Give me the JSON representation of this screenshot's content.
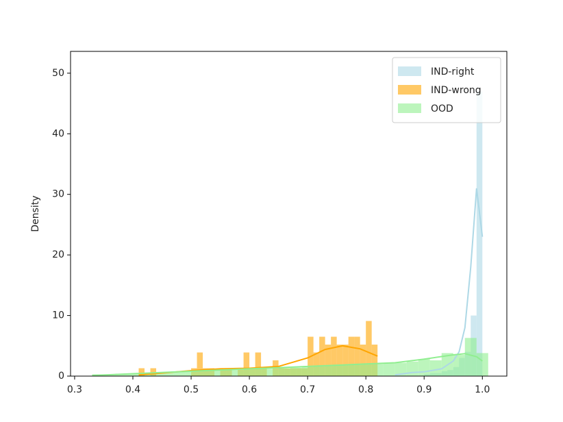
{
  "chart_data": {
    "type": "histogram",
    "ylabel": "Density",
    "xlim": [
      0.293,
      1.042
    ],
    "ylim": [
      0,
      53.6
    ],
    "xticks": [
      0.3,
      0.4,
      0.5,
      0.6,
      0.7,
      0.8,
      0.9,
      {
        "value": 1,
        "label": "1.0"
      }
    ],
    "yticks": [
      0,
      10,
      20,
      30,
      40,
      50
    ],
    "legend": "upper right",
    "series": [
      {
        "name": "IND-right",
        "color": "#add8e6",
        "bins": [
          0.9,
          0.91,
          0.92,
          0.93,
          0.94,
          0.95,
          0.96,
          0.97,
          0.98,
          0.99,
          1.0
        ],
        "counts": [
          0.3,
          0.5,
          0.5,
          0.8,
          1.0,
          1.5,
          3,
          4,
          10,
          47
        ],
        "kde_x": [
          0.85,
          0.88,
          0.9,
          0.93,
          0.95,
          0.96,
          0.97,
          0.98,
          0.99,
          1.0
        ],
        "kde_y": [
          0.2,
          0.6,
          0.7,
          1.2,
          2.5,
          4,
          8,
          18,
          31,
          23
        ]
      },
      {
        "name": "IND-wrong",
        "color": "#ffa500",
        "bins": [
          0.4,
          0.41,
          0.42,
          0.43,
          0.44,
          0.45,
          0.46,
          0.47,
          0.48,
          0.49,
          0.5,
          0.51,
          0.52,
          0.53,
          0.54,
          0.55,
          0.56,
          0.57,
          0.58,
          0.59,
          0.6,
          0.61,
          0.62,
          0.63,
          0.64,
          0.65,
          0.66,
          0.67,
          0.68,
          0.69,
          0.7,
          0.71,
          0.72,
          0.73,
          0.74,
          0.75,
          0.76,
          0.77,
          0.78,
          0.79,
          0.8,
          0.81,
          0.82
        ],
        "counts": [
          0,
          1.3,
          0,
          1.3,
          0,
          0,
          0,
          0,
          0,
          0,
          1.3,
          3.9,
          1.3,
          1.3,
          0,
          1.3,
          1.3,
          0,
          1.3,
          3.9,
          1.3,
          3.9,
          1.3,
          0,
          2.6,
          1.3,
          1.3,
          1.3,
          1.3,
          1.3,
          6.5,
          3.9,
          6.5,
          5.2,
          6.5,
          5.2,
          5.2,
          6.5,
          6.5,
          5.2,
          9.1,
          5.2
        ],
        "kde_x": [
          0.41,
          0.45,
          0.5,
          0.55,
          0.6,
          0.65,
          0.7,
          0.73,
          0.76,
          0.79,
          0.82
        ],
        "kde_y": [
          0.2,
          0.5,
          0.9,
          1.2,
          1.3,
          1.6,
          3.0,
          4.4,
          5.0,
          4.5,
          3.3
        ]
      },
      {
        "name": "OOD",
        "color": "#90ee90",
        "bins": [
          0.33,
          0.35,
          0.37,
          0.39,
          0.41,
          0.43,
          0.45,
          0.47,
          0.49,
          0.51,
          0.53,
          0.55,
          0.57,
          0.59,
          0.61,
          0.63,
          0.65,
          0.67,
          0.69,
          0.71,
          0.73,
          0.75,
          0.77,
          0.79,
          0.81,
          0.83,
          0.85,
          0.87,
          0.89,
          0.91,
          0.93,
          0.95,
          0.97,
          0.99,
          1.01
        ],
        "counts": [
          0.3,
          0.3,
          0.4,
          0.4,
          0.5,
          0.6,
          0.6,
          0.7,
          0.8,
          0.9,
          0.9,
          1.0,
          1.0,
          1.1,
          1.2,
          1.2,
          1.3,
          1.4,
          1.5,
          1.6,
          1.7,
          1.8,
          1.9,
          2.0,
          2.0,
          2.1,
          2.2,
          2.4,
          2.8,
          2.6,
          3.8,
          3.5,
          6.3,
          3.8
        ],
        "kde_x": [
          0.33,
          0.4,
          0.5,
          0.6,
          0.7,
          0.8,
          0.85,
          0.9,
          0.95,
          0.97,
          0.99,
          1.0
        ],
        "kde_y": [
          0.1,
          0.4,
          0.8,
          1.2,
          1.6,
          2.0,
          2.2,
          2.8,
          3.5,
          3.7,
          3.2,
          2.5
        ]
      }
    ]
  }
}
